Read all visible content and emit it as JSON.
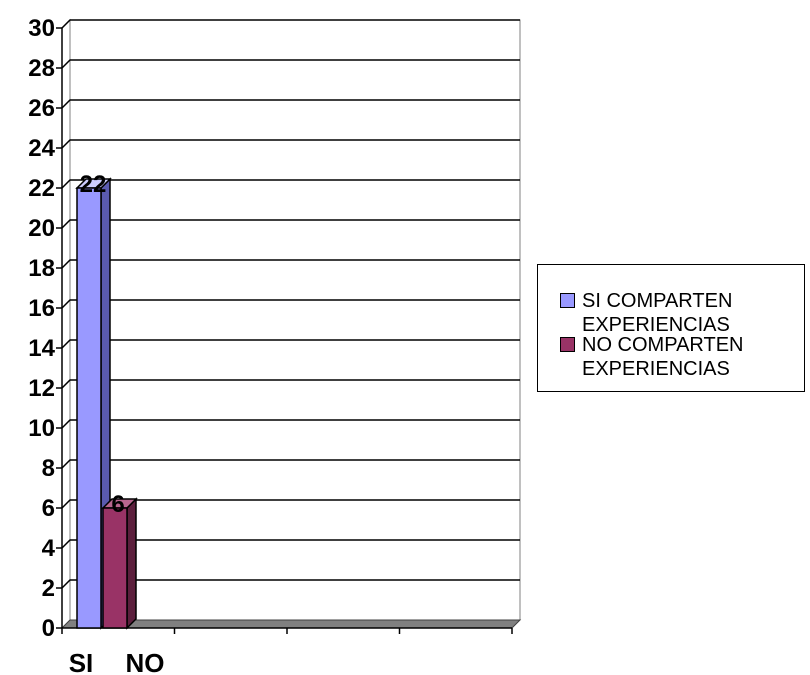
{
  "chart_data": {
    "type": "bar",
    "categories": [
      "SI",
      "NO"
    ],
    "series": [
      {
        "name": "SI COMPARTEN EXPERIENCIAS",
        "values": [
          22,
          null
        ],
        "color": "#9999ff"
      },
      {
        "name": "NO COMPARTEN EXPERIENCIAS",
        "values": [
          null,
          6
        ],
        "color": "#993366"
      }
    ],
    "data_labels": [
      "22",
      "6"
    ],
    "ylim": [
      0,
      30
    ],
    "yticks": [
      "0",
      "2",
      "4",
      "6",
      "8",
      "10",
      "12",
      "14",
      "16",
      "18",
      "20",
      "22",
      "24",
      "26",
      "28",
      "30"
    ],
    "grid": true,
    "legend_position": "right",
    "style": "3d-column"
  },
  "legend": {
    "item1_line1": "SI COMPARTEN",
    "item1_line2": "EXPERIENCIAS",
    "item2_line1": "NO COMPARTEN",
    "item2_line2": "EXPERIENCIAS"
  }
}
